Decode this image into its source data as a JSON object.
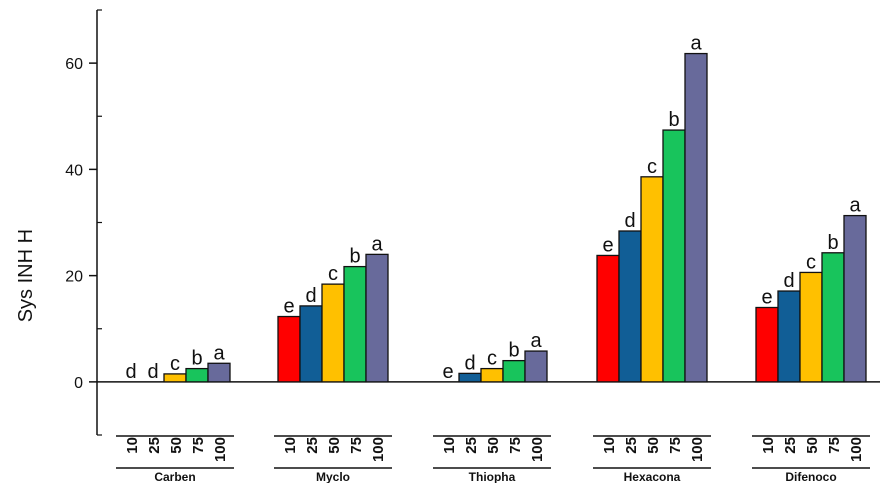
{
  "chart_data": {
    "type": "bar",
    "ylabel": "Sys INH H",
    "xlabel": "",
    "title": "",
    "ylim": [
      -10,
      70
    ],
    "yticks": [
      0,
      20,
      40,
      60
    ],
    "grid": false,
    "legend": "none",
    "doses": [
      "10",
      "25",
      "50",
      "75",
      "100"
    ],
    "dose_colors": [
      "#ff0000",
      "#115e96",
      "#ffc000",
      "#18c45c",
      "#686a9b"
    ],
    "groups": [
      {
        "name": "Carben",
        "values": [
          0,
          0,
          1.5,
          2.5,
          3.5
        ],
        "letters": [
          "d",
          "d",
          "c",
          "b",
          "a"
        ]
      },
      {
        "name": "Myclo",
        "values": [
          12.3,
          14.3,
          18.4,
          21.7,
          24.0
        ],
        "letters": [
          "e",
          "d",
          "c",
          "b",
          "a"
        ]
      },
      {
        "name": "Thiopha",
        "values": [
          0,
          1.6,
          2.5,
          4.0,
          5.8
        ],
        "letters": [
          "e",
          "d",
          "c",
          "b",
          "a"
        ]
      },
      {
        "name": "Hexacona",
        "values": [
          23.8,
          28.4,
          38.6,
          47.4,
          61.8
        ],
        "letters": [
          "e",
          "d",
          "c",
          "b",
          "a"
        ]
      },
      {
        "name": "Difenoco",
        "values": [
          14.0,
          17.1,
          20.6,
          24.3,
          31.3
        ],
        "letters": [
          "e",
          "d",
          "c",
          "b",
          "a"
        ]
      }
    ]
  }
}
